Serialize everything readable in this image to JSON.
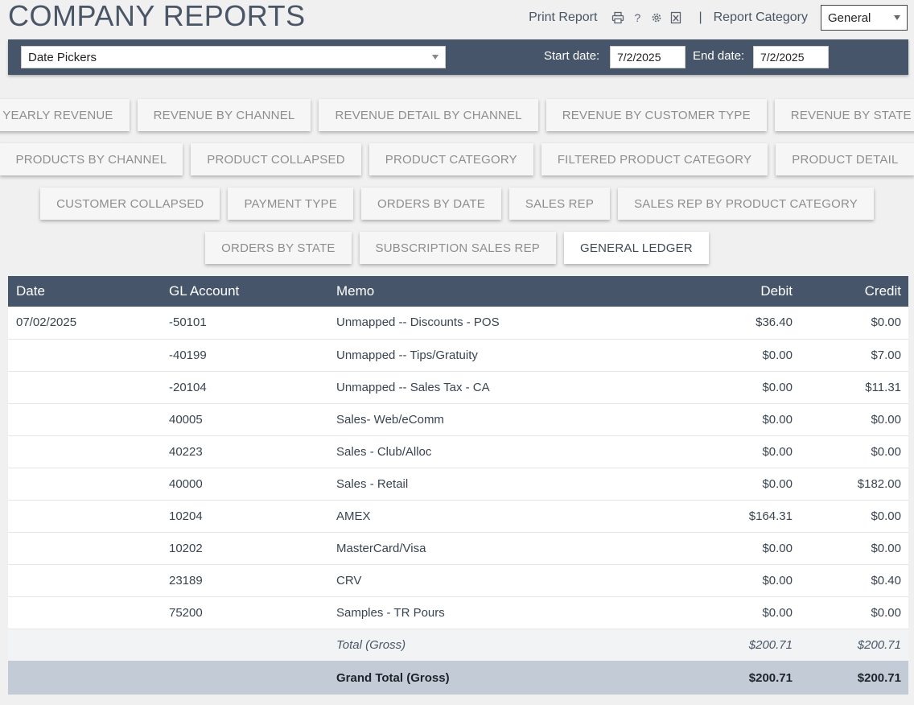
{
  "header": {
    "title": "COMPANY REPORTS",
    "print_label": "Print Report",
    "separator": "|",
    "category_label": "Report Category",
    "category_value": "General"
  },
  "icons": [
    "printer-icon",
    "help-icon",
    "gear-icon",
    "excel-export-icon"
  ],
  "toolbar": {
    "picker_value": "Date Pickers",
    "start_label": "Start date:",
    "start_value": "7/2/2025",
    "end_label": "End date:",
    "end_value": "7/2/2025"
  },
  "report_buttons": [
    [
      "YEARLY REVENUE",
      "REVENUE BY CHANNEL",
      "REVENUE DETAIL BY CHANNEL",
      "REVENUE BY CUSTOMER TYPE",
      "REVENUE BY STATE"
    ],
    [
      "PRODUCTS BY CHANNEL",
      "PRODUCT COLLAPSED",
      "PRODUCT CATEGORY",
      "FILTERED PRODUCT CATEGORY",
      "PRODUCT DETAIL"
    ],
    [
      "CUSTOMER COLLAPSED",
      "PAYMENT TYPE",
      "ORDERS BY DATE",
      "SALES REP",
      "SALES REP BY PRODUCT CATEGORY"
    ],
    [
      "ORDERS BY STATE",
      "SUBSCRIPTION SALES REP",
      "GENERAL LEDGER"
    ]
  ],
  "active_report": "GENERAL LEDGER",
  "table": {
    "columns": [
      "Date",
      "GL Account",
      "Memo",
      "Debit",
      "Credit"
    ],
    "rows": [
      [
        "07/02/2025",
        "-50101",
        "Unmapped -- Discounts - POS",
        "$36.40",
        "$0.00"
      ],
      [
        "",
        "-40199",
        "Unmapped -- Tips/Gratuity",
        "$0.00",
        "$7.00"
      ],
      [
        "",
        "-20104",
        "Unmapped -- Sales Tax - CA",
        "$0.00",
        "$11.31"
      ],
      [
        "",
        "40005",
        "Sales- Web/eComm",
        "$0.00",
        "$0.00"
      ],
      [
        "",
        "40223",
        "Sales - Club/Alloc",
        "$0.00",
        "$0.00"
      ],
      [
        "",
        "40000",
        "Sales - Retail",
        "$0.00",
        "$182.00"
      ],
      [
        "",
        "10204",
        "AMEX",
        "$164.31",
        "$0.00"
      ],
      [
        "",
        "10202",
        "MasterCard/Visa",
        "$0.00",
        "$0.00"
      ],
      [
        "",
        "23189",
        "CRV",
        "$0.00",
        "$0.40"
      ],
      [
        "",
        "75200",
        "Samples - TR Pours",
        "$0.00",
        "$0.00"
      ]
    ],
    "total": {
      "label": "Total (Gross)",
      "debit": "$200.71",
      "credit": "$200.71"
    },
    "grand_total": {
      "label": "Grand Total (Gross)",
      "debit": "$200.71",
      "credit": "$200.71"
    }
  }
}
